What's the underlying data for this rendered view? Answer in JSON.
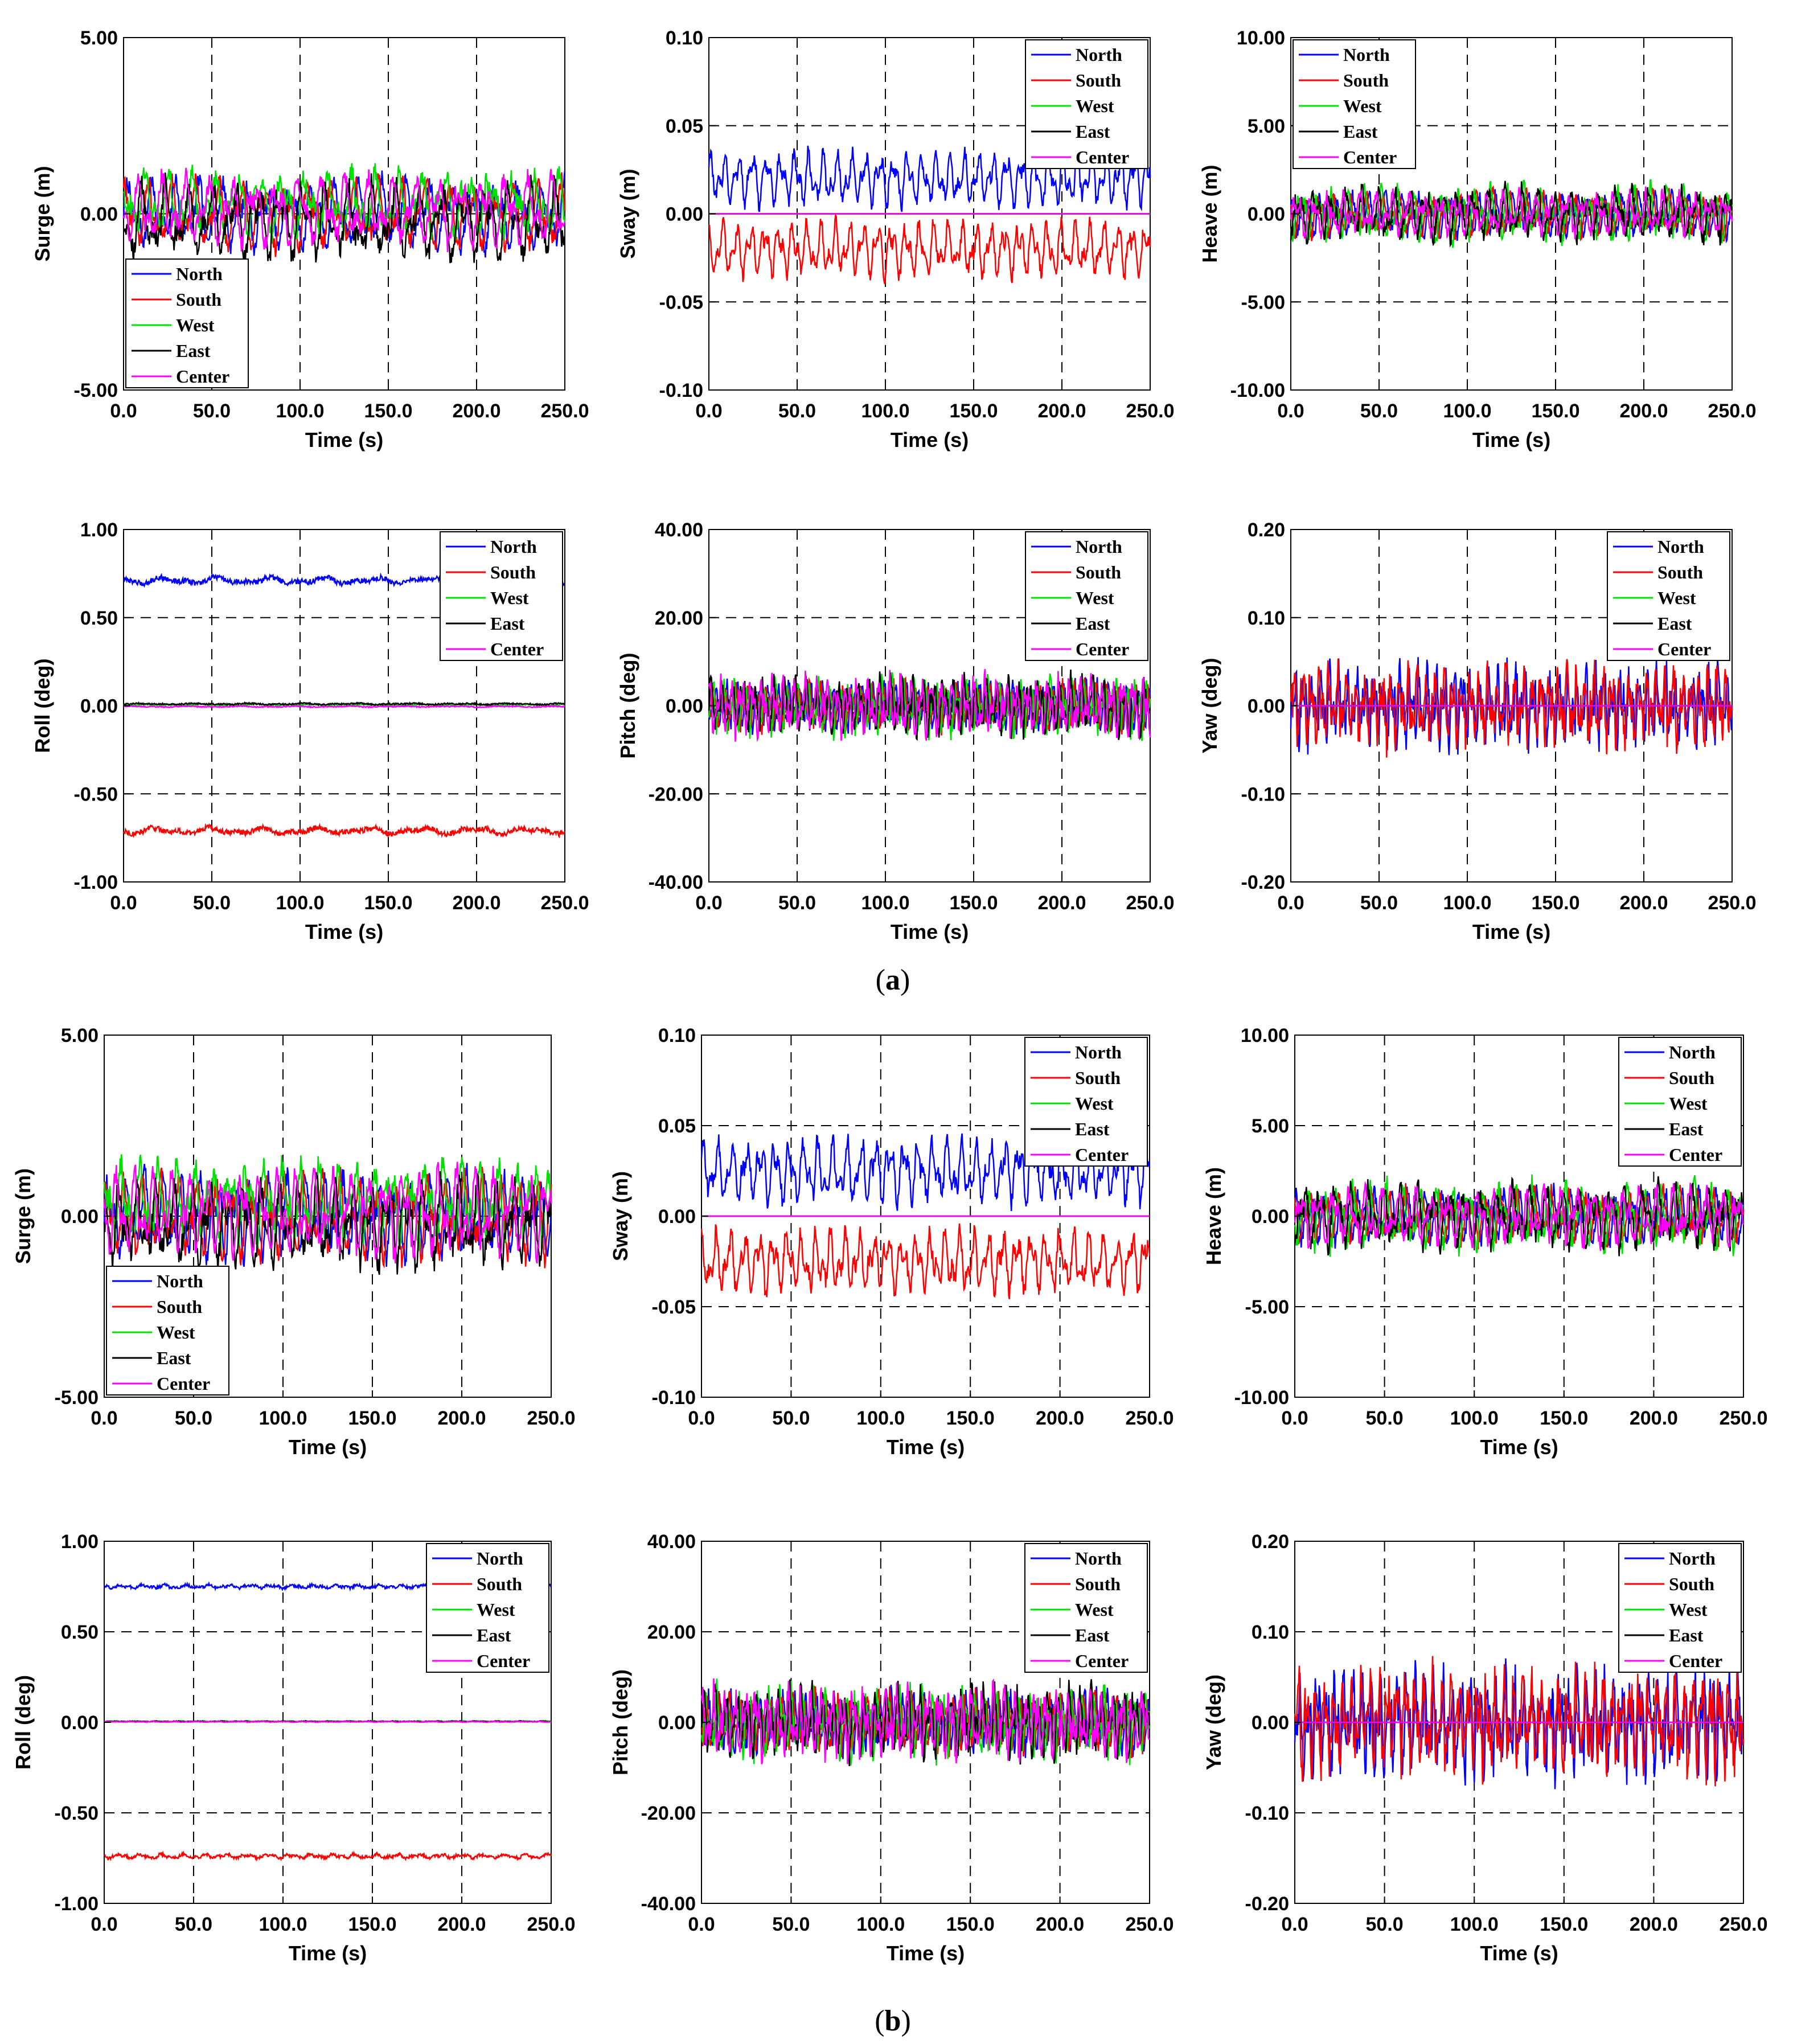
{
  "figure": {
    "panel_labels": [
      {
        "open": "(",
        "letter": "a",
        "close": ")"
      },
      {
        "open": "(",
        "letter": "b",
        "close": ")"
      }
    ]
  },
  "legend_entries": [
    "North",
    "South",
    "West",
    "East",
    "Center"
  ],
  "colors": {
    "North": "#0000ff",
    "South": "#ff0000",
    "West": "#00e000",
    "East": "#000000",
    "Center": "#ff00ff"
  },
  "chart_data": [
    {
      "panel": "a",
      "type": "line",
      "xlabel": "Time (s)",
      "ylabel": "Surge (m)",
      "xlim": [
        0,
        250
      ],
      "ylim": [
        -5,
        5
      ],
      "xticks": [
        "0.0",
        "50.0",
        "100.0",
        "150.0",
        "200.0",
        "250.0"
      ],
      "yticks": [
        "-5.00",
        "0.00",
        "5.00"
      ],
      "grid_x": [
        50,
        100,
        150,
        200
      ],
      "grid_y": [
        0
      ],
      "legend_position": "bottom-left",
      "series": [
        {
          "name": "North",
          "offset": 0,
          "amp": 1.0,
          "period": 13,
          "noise": 0.25
        },
        {
          "name": "South",
          "offset": 0,
          "amp": 1.0,
          "period": 13,
          "noise": 0.25
        },
        {
          "name": "West",
          "offset": 0.3,
          "amp": 0.9,
          "period": 13,
          "noise": 0.3
        },
        {
          "name": "East",
          "offset": -0.2,
          "amp": 1.1,
          "period": 13,
          "noise": 0.3
        },
        {
          "name": "Center",
          "offset": 0.1,
          "amp": 1.0,
          "period": 13,
          "noise": 0.25
        }
      ]
    },
    {
      "panel": "a",
      "type": "line",
      "xlabel": "Time (s)",
      "ylabel": "Sway (m)",
      "xlim": [
        0,
        250
      ],
      "ylim": [
        -0.1,
        0.1
      ],
      "xticks": [
        "0.0",
        "50.0",
        "100.0",
        "150.0",
        "200.0",
        "250.0"
      ],
      "yticks": [
        "-0.10",
        "-0.05",
        "0.00",
        "0.05",
        "0.10"
      ],
      "grid_x": [
        50,
        100,
        150,
        200
      ],
      "grid_y": [
        -0.05,
        0.05
      ],
      "legend_position": "top-right",
      "series": [
        {
          "name": "North",
          "offset": 0.02,
          "amp": 0.016,
          "period": 8,
          "noise": 0.004
        },
        {
          "name": "South",
          "offset": -0.02,
          "amp": 0.016,
          "period": 8,
          "noise": 0.004
        },
        {
          "name": "West",
          "offset": 0,
          "amp": 0,
          "period": 8,
          "noise": 0
        },
        {
          "name": "East",
          "offset": 0,
          "amp": 0,
          "period": 8,
          "noise": 0
        },
        {
          "name": "Center",
          "offset": 0,
          "amp": 0,
          "period": 8,
          "noise": 0
        }
      ]
    },
    {
      "panel": "a",
      "type": "line",
      "xlabel": "Time (s)",
      "ylabel": "Heave (m)",
      "xlim": [
        0,
        250
      ],
      "ylim": [
        -10,
        10
      ],
      "xticks": [
        "0.0",
        "50.0",
        "100.0",
        "150.0",
        "200.0",
        "250.0"
      ],
      "yticks": [
        "-10.00",
        "-5.00",
        "0.00",
        "5.00",
        "10.00"
      ],
      "grid_x": [
        50,
        100,
        150,
        200
      ],
      "grid_y": [
        -5,
        5
      ],
      "legend_position": "top-left",
      "series": [
        {
          "name": "North",
          "offset": 0,
          "amp": 1.2,
          "period": 9,
          "noise": 0.4
        },
        {
          "name": "South",
          "offset": 0,
          "amp": 1.2,
          "period": 9,
          "noise": 0.4
        },
        {
          "name": "West",
          "offset": 0,
          "amp": 1.5,
          "period": 9,
          "noise": 0.5
        },
        {
          "name": "East",
          "offset": 0,
          "amp": 1.4,
          "period": 9,
          "noise": 0.5
        },
        {
          "name": "Center",
          "offset": 0,
          "amp": 1.2,
          "period": 9,
          "noise": 0.4
        }
      ]
    },
    {
      "panel": "a",
      "type": "line",
      "xlabel": "Time (s)",
      "ylabel": "Roll (deg)",
      "xlim": [
        0,
        250
      ],
      "ylim": [
        -1,
        1
      ],
      "xticks": [
        "0.0",
        "50.0",
        "100.0",
        "150.0",
        "200.0",
        "250.0"
      ],
      "yticks": [
        "-1.00",
        "-0.50",
        "0.00",
        "0.50",
        "1.00"
      ],
      "grid_x": [
        50,
        100,
        150,
        200
      ],
      "grid_y": [
        -0.5,
        0.5
      ],
      "legend_position": "top-right",
      "series": [
        {
          "name": "North",
          "offset": 0.71,
          "amp": 0.02,
          "period": 30,
          "noise": 0.015
        },
        {
          "name": "South",
          "offset": -0.71,
          "amp": 0.02,
          "period": 30,
          "noise": 0.015
        },
        {
          "name": "West",
          "offset": 0.005,
          "amp": 0.003,
          "period": 30,
          "noise": 0.003
        },
        {
          "name": "East",
          "offset": 0.01,
          "amp": 0.004,
          "period": 30,
          "noise": 0.004
        },
        {
          "name": "Center",
          "offset": -0.005,
          "amp": 0.003,
          "period": 30,
          "noise": 0.003
        }
      ]
    },
    {
      "panel": "a",
      "type": "line",
      "xlabel": "Time (s)",
      "ylabel": "Pitch (deg)",
      "xlim": [
        0,
        250
      ],
      "ylim": [
        -40,
        40
      ],
      "xticks": [
        "0.0",
        "50.0",
        "100.0",
        "150.0",
        "200.0",
        "250.0"
      ],
      "yticks": [
        "-40.00",
        "-20.00",
        "0.00",
        "20.00",
        "40.00"
      ],
      "grid_x": [
        50,
        100,
        150,
        200
      ],
      "grid_y": [
        -20,
        20
      ],
      "legend_position": "top-right",
      "series": [
        {
          "name": "North",
          "offset": 0,
          "amp": 5,
          "period": 6,
          "noise": 2
        },
        {
          "name": "South",
          "offset": 0,
          "amp": 5,
          "period": 6,
          "noise": 2
        },
        {
          "name": "West",
          "offset": 0,
          "amp": 6,
          "period": 6,
          "noise": 2.5
        },
        {
          "name": "East",
          "offset": 0,
          "amp": 6,
          "period": 6,
          "noise": 2.5
        },
        {
          "name": "Center",
          "offset": 0,
          "amp": 6,
          "period": 6,
          "noise": 2.5
        }
      ]
    },
    {
      "panel": "a",
      "type": "line",
      "xlabel": "Time (s)",
      "ylabel": "Yaw (deg)",
      "xlim": [
        0,
        250
      ],
      "ylim": [
        -0.2,
        0.2
      ],
      "xticks": [
        "0.0",
        "50.0",
        "100.0",
        "150.0",
        "200.0",
        "250.0"
      ],
      "yticks": [
        "-0.20",
        "-0.10",
        "0.00",
        "0.10",
        "0.20"
      ],
      "grid_x": [
        50,
        100,
        150,
        200
      ],
      "grid_y": [
        -0.1,
        0.1
      ],
      "legend_position": "top-right",
      "series": [
        {
          "name": "North",
          "offset": 0,
          "amp": 0.04,
          "period": 5,
          "noise": 0.02
        },
        {
          "name": "South",
          "offset": 0,
          "amp": 0.04,
          "period": 5,
          "noise": 0.02
        },
        {
          "name": "West",
          "offset": 0,
          "amp": 0,
          "period": 5,
          "noise": 0
        },
        {
          "name": "East",
          "offset": 0,
          "amp": 0,
          "period": 5,
          "noise": 0
        },
        {
          "name": "Center",
          "offset": 0,
          "amp": 0,
          "period": 5,
          "noise": 0
        }
      ]
    },
    {
      "panel": "b",
      "type": "line",
      "xlabel": "Time (s)",
      "ylabel": "Surge (m)",
      "xlim": [
        0,
        250
      ],
      "ylim": [
        -5,
        5
      ],
      "xticks": [
        "0.0",
        "50.0",
        "100.0",
        "150.0",
        "200.0",
        "250.0"
      ],
      "yticks": [
        "-5.00",
        "0.00",
        "5.00"
      ],
      "grid_x": [
        50,
        100,
        150,
        200
      ],
      "grid_y": [
        0
      ],
      "legend_position": "bottom-left",
      "series": [
        {
          "name": "North",
          "offset": 0,
          "amp": 1.2,
          "period": 10,
          "noise": 0.3
        },
        {
          "name": "South",
          "offset": 0,
          "amp": 1.2,
          "period": 10,
          "noise": 0.3
        },
        {
          "name": "West",
          "offset": 0.4,
          "amp": 1.1,
          "period": 10,
          "noise": 0.35
        },
        {
          "name": "East",
          "offset": -0.2,
          "amp": 1.2,
          "period": 10,
          "noise": 0.35
        },
        {
          "name": "Center",
          "offset": 0.1,
          "amp": 1.2,
          "period": 10,
          "noise": 0.3
        }
      ]
    },
    {
      "panel": "b",
      "type": "line",
      "xlabel": "Time (s)",
      "ylabel": "Sway (m)",
      "xlim": [
        0,
        250
      ],
      "ylim": [
        -0.1,
        0.1
      ],
      "xticks": [
        "0.0",
        "50.0",
        "100.0",
        "150.0",
        "200.0",
        "250.0"
      ],
      "yticks": [
        "-0.10",
        "-0.05",
        "0.00",
        "0.05",
        "0.10"
      ],
      "grid_x": [
        50,
        100,
        150,
        200
      ],
      "grid_y": [
        -0.05,
        0.05
      ],
      "legend_position": "top-right",
      "series": [
        {
          "name": "North",
          "offset": 0.025,
          "amp": 0.018,
          "period": 8,
          "noise": 0.005
        },
        {
          "name": "South",
          "offset": -0.025,
          "amp": 0.018,
          "period": 8,
          "noise": 0.005
        },
        {
          "name": "West",
          "offset": 0,
          "amp": 0,
          "period": 8,
          "noise": 0
        },
        {
          "name": "East",
          "offset": 0,
          "amp": 0,
          "period": 8,
          "noise": 0
        },
        {
          "name": "Center",
          "offset": 0,
          "amp": 0,
          "period": 8,
          "noise": 0
        }
      ]
    },
    {
      "panel": "b",
      "type": "line",
      "xlabel": "Time (s)",
      "ylabel": "Heave (m)",
      "xlim": [
        0,
        250
      ],
      "ylim": [
        -10,
        10
      ],
      "xticks": [
        "0.0",
        "50.0",
        "100.0",
        "150.0",
        "200.0",
        "250.0"
      ],
      "yticks": [
        "-10.00",
        "-5.00",
        "0.00",
        "5.00",
        "10.00"
      ],
      "grid_x": [
        50,
        100,
        150,
        200
      ],
      "grid_y": [
        -5,
        5
      ],
      "legend_position": "top-right",
      "series": [
        {
          "name": "North",
          "offset": 0,
          "amp": 1.4,
          "period": 9,
          "noise": 0.5
        },
        {
          "name": "South",
          "offset": 0,
          "amp": 1.4,
          "period": 9,
          "noise": 0.5
        },
        {
          "name": "West",
          "offset": 0,
          "amp": 1.8,
          "period": 9,
          "noise": 0.6
        },
        {
          "name": "East",
          "offset": 0,
          "amp": 1.7,
          "period": 9,
          "noise": 0.6
        },
        {
          "name": "Center",
          "offset": 0,
          "amp": 1.5,
          "period": 9,
          "noise": 0.5
        }
      ]
    },
    {
      "panel": "b",
      "type": "line",
      "xlabel": "Time (s)",
      "ylabel": "Roll (deg)",
      "xlim": [
        0,
        250
      ],
      "ylim": [
        -1,
        1
      ],
      "xticks": [
        "0.0",
        "50.0",
        "100.0",
        "150.0",
        "200.0",
        "250.0"
      ],
      "yticks": [
        "-1.00",
        "-0.50",
        "0.00",
        "0.50",
        "1.00"
      ],
      "grid_x": [
        50,
        100,
        150,
        200
      ],
      "grid_y": [
        -0.5,
        0.5
      ],
      "legend_position": "top-right",
      "series": [
        {
          "name": "North",
          "offset": 0.75,
          "amp": 0.01,
          "period": 12,
          "noise": 0.008
        },
        {
          "name": "South",
          "offset": -0.74,
          "amp": 0.012,
          "period": 12,
          "noise": 0.008
        },
        {
          "name": "West",
          "offset": 0.005,
          "amp": 0.002,
          "period": 12,
          "noise": 0.002
        },
        {
          "name": "East",
          "offset": 0.005,
          "amp": 0.002,
          "period": 12,
          "noise": 0.002
        },
        {
          "name": "Center",
          "offset": 0.003,
          "amp": 0.002,
          "period": 12,
          "noise": 0.002
        }
      ]
    },
    {
      "panel": "b",
      "type": "line",
      "xlabel": "Time (s)",
      "ylabel": "Pitch (deg)",
      "xlim": [
        0,
        250
      ],
      "ylim": [
        -40,
        40
      ],
      "xticks": [
        "0.0",
        "50.0",
        "100.0",
        "150.0",
        "200.0",
        "250.0"
      ],
      "yticks": [
        "-40.00",
        "-20.00",
        "0.00",
        "20.00",
        "40.00"
      ],
      "grid_x": [
        50,
        100,
        150,
        200
      ],
      "grid_y": [
        -20,
        20
      ],
      "legend_position": "top-right",
      "series": [
        {
          "name": "North",
          "offset": 0,
          "amp": 6,
          "period": 6,
          "noise": 2.5
        },
        {
          "name": "South",
          "offset": 0,
          "amp": 6,
          "period": 6,
          "noise": 2.5
        },
        {
          "name": "West",
          "offset": 0,
          "amp": 7,
          "period": 6,
          "noise": 3
        },
        {
          "name": "East",
          "offset": 0,
          "amp": 7,
          "period": 6,
          "noise": 3
        },
        {
          "name": "Center",
          "offset": 0,
          "amp": 7,
          "period": 6,
          "noise": 3
        }
      ]
    },
    {
      "panel": "b",
      "type": "line",
      "xlabel": "Time (s)",
      "ylabel": "Yaw (deg)",
      "xlim": [
        0,
        250
      ],
      "ylim": [
        -0.2,
        0.2
      ],
      "xticks": [
        "0.0",
        "50.0",
        "100.0",
        "150.0",
        "200.0",
        "250.0"
      ],
      "yticks": [
        "-0.20",
        "-0.10",
        "0.00",
        "0.10",
        "0.20"
      ],
      "grid_x": [
        50,
        100,
        150,
        200
      ],
      "grid_y": [
        -0.1,
        0.1
      ],
      "legend_position": "top-right",
      "series": [
        {
          "name": "North",
          "offset": 0,
          "amp": 0.05,
          "period": 5,
          "noise": 0.025
        },
        {
          "name": "South",
          "offset": 0,
          "amp": 0.05,
          "period": 5,
          "noise": 0.025
        },
        {
          "name": "West",
          "offset": 0,
          "amp": 0,
          "period": 5,
          "noise": 0
        },
        {
          "name": "East",
          "offset": 0,
          "amp": 0,
          "period": 5,
          "noise": 0
        },
        {
          "name": "Center",
          "offset": 0,
          "amp": 0,
          "period": 5,
          "noise": 0
        }
      ]
    }
  ]
}
